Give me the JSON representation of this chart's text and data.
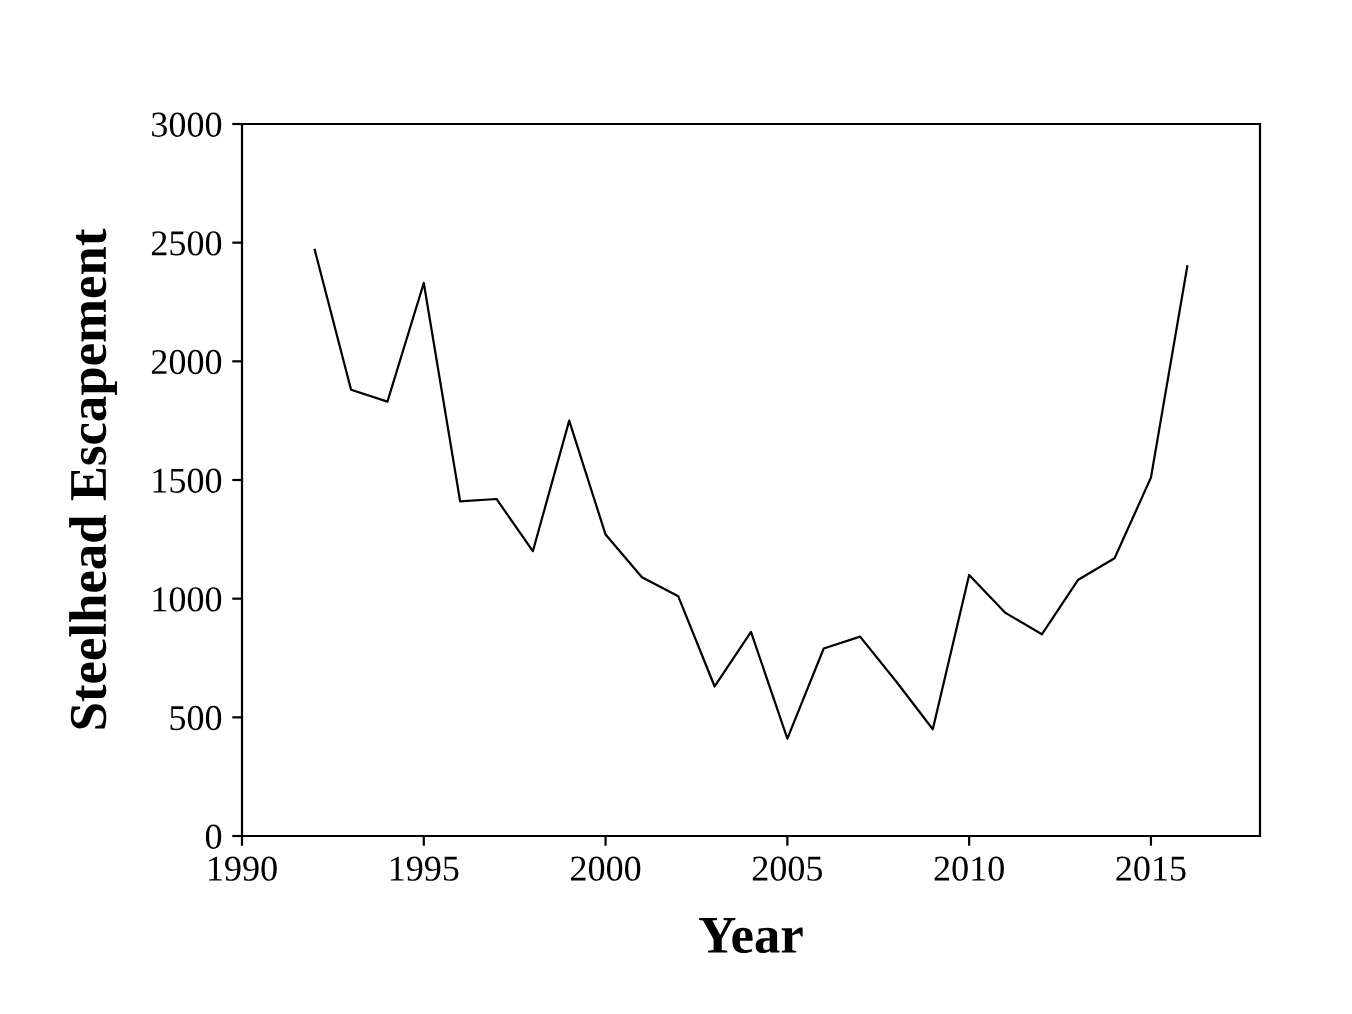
{
  "chart_data": {
    "type": "line",
    "xlabel": "Year",
    "ylabel": "Steelhead Escapement",
    "x": [
      1992,
      1993,
      1994,
      1995,
      1996,
      1997,
      1998,
      1999,
      2000,
      2001,
      2002,
      2003,
      2004,
      2005,
      2006,
      2007,
      2008,
      2009,
      2010,
      2011,
      2012,
      2013,
      2014,
      2015,
      2016
    ],
    "series": [
      {
        "color": "#000000",
        "values": [
          2470,
          1880,
          1830,
          2330,
          1410,
          1420,
          1200,
          1750,
          1270,
          1090,
          1010,
          630,
          860,
          410,
          790,
          840,
          650,
          450,
          1100,
          940,
          850,
          1080,
          1170,
          1510,
          2400
        ]
      }
    ],
    "xlim": [
      1990,
      2018
    ],
    "xticks": [
      1990,
      1995,
      2000,
      2005,
      2010,
      2015
    ],
    "ylim": [
      0,
      3000
    ],
    "yticks": [
      0,
      500,
      1000,
      1500,
      2000,
      2500,
      3000
    ],
    "grid": false,
    "legend": false,
    "marker": "none",
    "line_style": "solid"
  }
}
